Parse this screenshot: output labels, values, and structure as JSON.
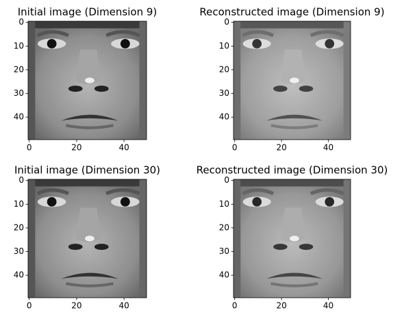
{
  "chart_data": [
    {
      "type": "image",
      "title": "Initial image (Dimension 9)",
      "xlim": [
        -0.5,
        49.5
      ],
      "ylim": [
        49.5,
        -0.5
      ],
      "xticks": [
        0,
        20,
        40
      ],
      "yticks": [
        0,
        10,
        20,
        30,
        40
      ]
    },
    {
      "type": "image",
      "title": "Reconstructed image (Dimension 9)",
      "xlim": [
        -0.5,
        49.5
      ],
      "ylim": [
        49.5,
        -0.5
      ],
      "xticks": [
        0,
        20,
        40
      ],
      "yticks": [
        0,
        10,
        20,
        30,
        40
      ]
    },
    {
      "type": "image",
      "title": "Initial image (Dimension 30)",
      "xlim": [
        -0.5,
        49.5
      ],
      "ylim": [
        49.5,
        -0.5
      ],
      "xticks": [
        0,
        20,
        40
      ],
      "yticks": [
        0,
        10,
        20,
        30,
        40
      ]
    },
    {
      "type": "image",
      "title": "Reconstructed image (Dimension 30)",
      "xlim": [
        -0.5,
        49.5
      ],
      "ylim": [
        49.5,
        -0.5
      ],
      "xticks": [
        0,
        20,
        40
      ],
      "yticks": [
        0,
        10,
        20,
        30,
        40
      ]
    }
  ]
}
